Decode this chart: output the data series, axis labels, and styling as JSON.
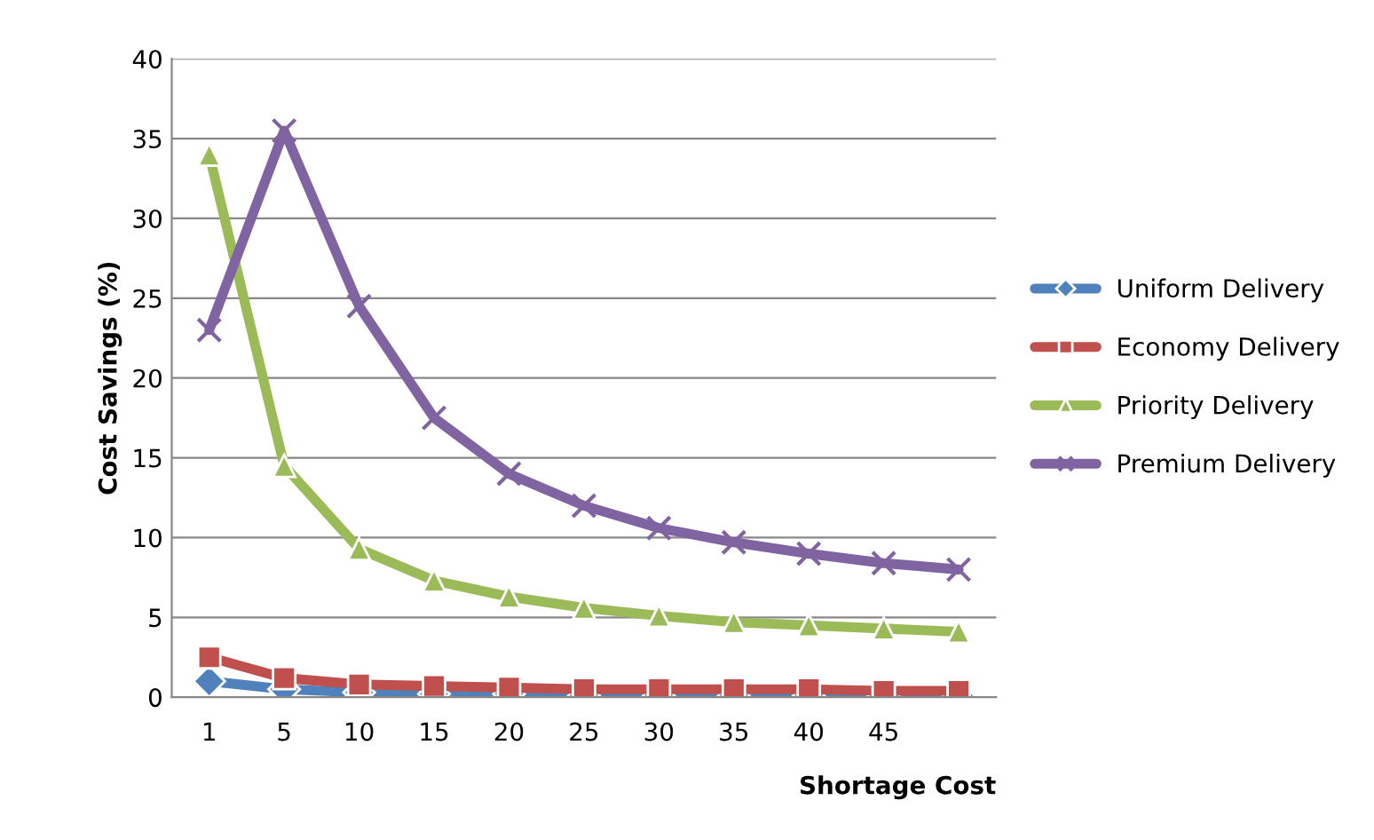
{
  "chart_data": {
    "type": "line",
    "xlabel": "Shortage Cost",
    "ylabel": "Cost Savings (%)",
    "categories": [
      "1",
      "5",
      "10",
      "15",
      "20",
      "25",
      "30",
      "35",
      "40",
      "45",
      null
    ],
    "ylim": [
      0,
      40
    ],
    "yticks": [
      0,
      5,
      10,
      15,
      20,
      25,
      30,
      35,
      40
    ],
    "grid": "y",
    "legend": "right",
    "series": [
      {
        "name": "Uniform Delivery",
        "color": "#4f81bd",
        "marker": "diamond",
        "values": [
          1.0,
          0.5,
          0.3,
          0.2,
          0.2,
          0.1,
          0.1,
          0.1,
          0.1,
          0.1,
          0.1
        ]
      },
      {
        "name": "Economy Delivery",
        "color": "#c0504d",
        "marker": "square",
        "values": [
          2.5,
          1.2,
          0.8,
          0.7,
          0.6,
          0.5,
          0.5,
          0.5,
          0.5,
          0.4,
          0.4
        ]
      },
      {
        "name": "Priority Delivery",
        "color": "#9bbb59",
        "marker": "triangle",
        "values": [
          34,
          14.5,
          9.3,
          7.3,
          6.3,
          5.6,
          5.1,
          4.7,
          4.5,
          4.3,
          4.1
        ]
      },
      {
        "name": "Premium Delivery",
        "color": "#8064a2",
        "marker": "cross",
        "values": [
          23,
          35.5,
          24.5,
          17.5,
          14,
          12,
          10.6,
          9.7,
          9,
          8.4,
          8
        ]
      }
    ]
  }
}
